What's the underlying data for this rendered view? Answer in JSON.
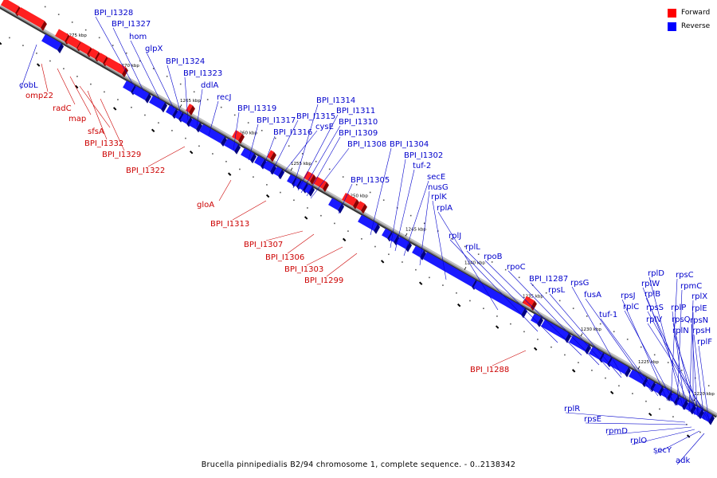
{
  "legend": {
    "forward_label": "Forward",
    "reverse_label": "Reverse",
    "forward_color": "#ff0000",
    "reverse_color": "#0000ff"
  },
  "footer": {
    "caption": "Brucella pinnipedialis B2/94 chromosome 1, complete sequence. - 0..2138342"
  },
  "colors": {
    "forward_line": "#cc0000",
    "reverse_line": "#0000cc",
    "backbone": "#888888"
  },
  "scale_ticks": [
    "1275 kbp",
    "1270 kbp",
    "1265 kbp",
    "1260 kbp",
    "1255 kbp",
    "1250 kbp",
    "1245 kbp",
    "1240 kbp",
    "1235 kbp",
    "1230 kbp",
    "1225 kbp",
    "1220 kbp"
  ],
  "reverse_genes": [
    "BPI_I1328",
    "BPI_I1327",
    "hom",
    "glpX",
    "BPI_I1324",
    "BPI_I1323",
    "ddlA",
    "recJ",
    "BPI_I1319",
    "BPI_I1317",
    "BPI_I1316",
    "BPI_I1315",
    "cysE",
    "BPI_I1314",
    "BPI_I1311",
    "BPI_I1310",
    "BPI_I1309",
    "BPI_I1308",
    "BPI_I1305",
    "BPI_I1304",
    "BPI_I1302",
    "tuf-2",
    "secE",
    "nusG",
    "rplK",
    "rplA",
    "rplJ",
    "rplL",
    "rpoB",
    "rpoC",
    "BPI_I1287",
    "rpsL",
    "rpsG",
    "fusA",
    "tuf-1",
    "rpsJ",
    "rplC",
    "rplD",
    "rplW",
    "rplB",
    "rpsS",
    "rplV",
    "rpsC",
    "rpmC",
    "rplP",
    "rplX",
    "rplE",
    "rpsQ",
    "rpsN",
    "rplN",
    "rpsH",
    "rplF",
    "cobL",
    "rplR",
    "rpsE",
    "rpmD",
    "rplO",
    "secY",
    "adk"
  ],
  "forward_genes": [
    "omp22",
    "radC",
    "map",
    "sfsA",
    "BPI_I1332",
    "BPI_I1329",
    "BPI_I1322",
    "gloA",
    "BPI_I1313",
    "BPI_I1307",
    "BPI_I1306",
    "BPI_I1303",
    "BPI_I1299",
    "BPI_I1288"
  ]
}
